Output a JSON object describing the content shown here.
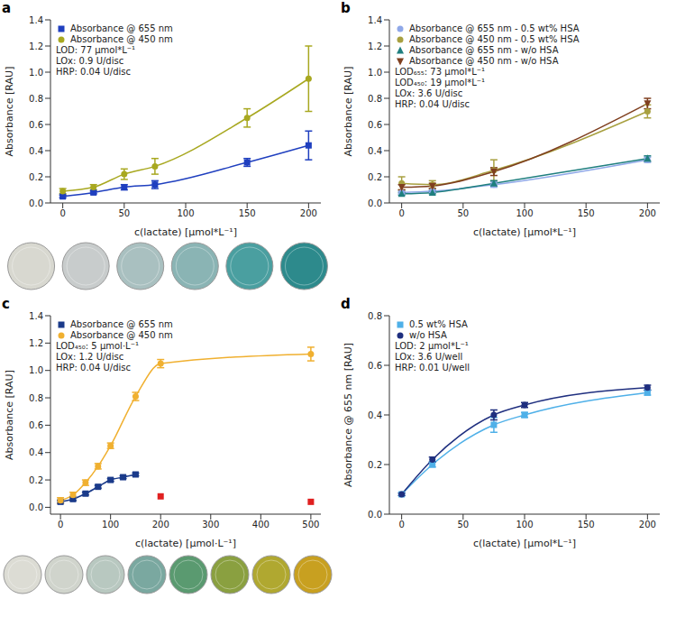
{
  "chart_data": [
    {
      "title": "a",
      "type": "line",
      "x_label": "c(lactate) [µmol*L⁻¹]",
      "y_label": "Absorbance [RAU]",
      "xlim": [
        -10,
        210
      ],
      "ylim": [
        0,
        1.4
      ],
      "xticks": [
        0,
        50,
        100,
        150,
        200
      ],
      "yticks": [
        {
          "value": 0,
          "label": "0.0"
        },
        {
          "value": 0.2,
          "label": "0.2"
        },
        {
          "value": 0.4,
          "label": "0.4"
        },
        {
          "value": 0.6,
          "label": "0.6"
        },
        {
          "value": 0.8,
          "label": "0.8"
        },
        {
          "value": 1.0,
          "label": "1.0"
        },
        {
          "value": 1.2,
          "label": "1.2"
        },
        {
          "value": 1.4,
          "label": "1.4"
        }
      ],
      "legend": "top-left",
      "annotations": [
        "LOD: 77 µmol*L⁻¹",
        "LOx: 0.9 U/disc",
        "HRP: 0.04 U/disc"
      ],
      "series": [
        {
          "name": "Absorbance @ 655 nm",
          "color": "#1f3fbf",
          "marker": "square",
          "x": [
            0,
            25,
            50,
            75,
            150,
            200
          ],
          "values": [
            0.05,
            0.08,
            0.12,
            0.14,
            0.31,
            0.44
          ],
          "errors": [
            0.01,
            0.01,
            0.02,
            0.03,
            0.03,
            0.11
          ]
        },
        {
          "name": "Absorbance @ 450 nm",
          "color": "#a8a820",
          "marker": "circle",
          "x": [
            0,
            25,
            50,
            75,
            150,
            200
          ],
          "values": [
            0.09,
            0.12,
            0.22,
            0.28,
            0.65,
            0.95
          ],
          "errors": [
            0.02,
            0.02,
            0.04,
            0.06,
            0.07,
            0.25
          ]
        }
      ]
    },
    {
      "title": "b",
      "type": "line",
      "x_label": "c(lactate) [µmol*L⁻¹]",
      "y_label": "Absorbance [RAU]",
      "xlim": [
        -10,
        210
      ],
      "ylim": [
        0,
        1.4
      ],
      "xticks": [
        0,
        50,
        100,
        150,
        200
      ],
      "yticks": [
        {
          "value": 0,
          "label": "0.0"
        },
        {
          "value": 0.2,
          "label": "0.2"
        },
        {
          "value": 0.4,
          "label": "0.4"
        },
        {
          "value": 0.6,
          "label": "0.6"
        },
        {
          "value": 0.8,
          "label": "0.8"
        },
        {
          "value": 1.0,
          "label": "1.0"
        },
        {
          "value": 1.2,
          "label": "1.2"
        },
        {
          "value": 1.4,
          "label": "1.4"
        }
      ],
      "legend": "top-left",
      "annotations": [
        "LOD₆₅₅: 73 µmol*L⁻¹",
        "LOD₄₅₀: 19 µmol*L⁻¹",
        "LOx: 3.6 U/disc",
        "HRP: 0.04 U/disc"
      ],
      "series": [
        {
          "name": "Absorbance @ 655 nm - 0.5 wt% HSA",
          "color": "#8fa8e8",
          "marker": "circle",
          "x": [
            0,
            25,
            75,
            200
          ],
          "values": [
            0.08,
            0.09,
            0.14,
            0.33
          ],
          "errors": [
            0.01,
            0.01,
            0.02,
            0.02
          ]
        },
        {
          "name": "Absorbance @ 450 nm - 0.5 wt% HSA",
          "color": "#a8a040",
          "marker": "circle",
          "x": [
            0,
            25,
            75,
            200
          ],
          "values": [
            0.15,
            0.14,
            0.25,
            0.7
          ],
          "errors": [
            0.05,
            0.03,
            0.08,
            0.05
          ]
        },
        {
          "name": "Absorbance @ 655 nm - w/o HSA",
          "color": "#1f7f7f",
          "marker": "triangle",
          "x": [
            0,
            25,
            75,
            200
          ],
          "values": [
            0.07,
            0.08,
            0.15,
            0.34
          ],
          "errors": [
            0.01,
            0.01,
            0.02,
            0.02
          ]
        },
        {
          "name": "Absorbance @ 450 nm - w/o HSA",
          "color": "#7f3f1f",
          "marker": "triangle_down",
          "x": [
            0,
            25,
            75,
            200
          ],
          "values": [
            0.12,
            0.13,
            0.24,
            0.76
          ],
          "errors": [
            0.02,
            0.02,
            0.03,
            0.04
          ]
        }
      ]
    },
    {
      "title": "c",
      "type": "line",
      "x_label": "c(lactate) [µmol·L⁻¹]",
      "y_label": "Absorbance [RAU]",
      "xlim": [
        -20,
        520
      ],
      "ylim": [
        -0.05,
        1.4
      ],
      "xticks": [
        0,
        100,
        200,
        300,
        400,
        500
      ],
      "yticks": [
        {
          "value": 0,
          "label": "0.0"
        },
        {
          "value": 0.2,
          "label": "0.2"
        },
        {
          "value": 0.4,
          "label": "0.4"
        },
        {
          "value": 0.6,
          "label": "0.6"
        },
        {
          "value": 0.8,
          "label": "0.8"
        },
        {
          "value": 1.0,
          "label": "1.0"
        },
        {
          "value": 1.2,
          "label": "1.2"
        },
        {
          "value": 1.4,
          "label": "1.4"
        }
      ],
      "legend": "top-left",
      "annotations": [
        "LOD₄₅₀: 5 µmol·L⁻¹",
        "LOx: 1.2 U/disc",
        "HRP: 0.04 U/disc"
      ],
      "series": [
        {
          "name": "Absorbance @ 655 nm",
          "color": "#1a3a8a",
          "marker": "square",
          "x": [
            0,
            25,
            50,
            75,
            100,
            125,
            150,
            200,
            500
          ],
          "values": [
            0.04,
            0.06,
            0.1,
            0.15,
            0.2,
            0.22,
            0.24,
            0.08,
            0.04
          ],
          "errors": [
            0.01,
            0.01,
            0.01,
            0.01,
            0.01,
            0.01,
            0.01,
            null,
            null
          ],
          "colors": [
            "#1a3a8a",
            "#1a3a8a",
            "#1a3a8a",
            "#1a3a8a",
            "#1a3a8a",
            "#1a3a8a",
            "#1a3a8a",
            "#e02020",
            "#e02020"
          ]
        },
        {
          "name": "Absorbance @ 450 nm",
          "color": "#f0b030",
          "marker": "circle",
          "x": [
            0,
            25,
            50,
            75,
            100,
            150,
            200,
            500
          ],
          "values": [
            0.05,
            0.09,
            0.18,
            0.3,
            0.45,
            0.81,
            1.05,
            1.12
          ],
          "errors": [
            0.02,
            0.02,
            0.02,
            0.02,
            0.02,
            0.03,
            0.03,
            0.05
          ]
        }
      ]
    },
    {
      "title": "d",
      "type": "line",
      "x_label": "c(lactate) [µmol*L⁻¹]",
      "y_label": "Absorbance @ 655 nm [RAU]",
      "xlim": [
        -10,
        210
      ],
      "ylim": [
        0,
        0.8
      ],
      "xticks": [
        0,
        50,
        100,
        150,
        200
      ],
      "yticks": [
        {
          "value": 0,
          "label": "0.0"
        },
        {
          "value": 0.2,
          "label": "0.2"
        },
        {
          "value": 0.4,
          "label": "0.4"
        },
        {
          "value": 0.6,
          "label": "0.6"
        },
        {
          "value": 0.8,
          "label": "0.8"
        }
      ],
      "legend": "top-left",
      "annotations": [
        "LOD: 2 µmol*L⁻¹",
        "LOx: 3.6 U/well",
        "HRP: 0.01 U/well"
      ],
      "series": [
        {
          "name": "0.5 wt% HSA",
          "color": "#4fb0e8",
          "marker": "square",
          "x": [
            0,
            25,
            75,
            100,
            200
          ],
          "values": [
            0.08,
            0.2,
            0.36,
            0.4,
            0.49
          ],
          "errors": [
            0.005,
            0.01,
            0.03,
            0.01,
            0.01
          ]
        },
        {
          "name": "w/o HSA",
          "color": "#1f2f7f",
          "marker": "circle",
          "x": [
            0,
            25,
            75,
            100,
            200
          ],
          "values": [
            0.08,
            0.22,
            0.4,
            0.44,
            0.51
          ],
          "errors": [
            0.005,
            0.01,
            0.02,
            0.01,
            0.01
          ]
        }
      ]
    }
  ]
}
